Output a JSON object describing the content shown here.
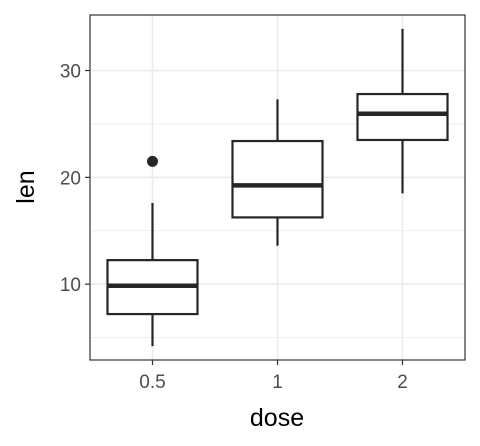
{
  "chart_data": {
    "type": "box",
    "xlabel": "dose",
    "ylabel": "len",
    "categories": [
      "0.5",
      "1",
      "2"
    ],
    "ylim": [
      2.9,
      35.2
    ],
    "yticks": [
      10,
      20,
      30
    ],
    "yticks_minor": [
      5,
      15,
      25
    ],
    "grid": true,
    "boxes": [
      {
        "category": "0.5",
        "whisker_low": 4.2,
        "q1": 7.2,
        "median": 9.85,
        "q3": 12.25,
        "whisker_high": 17.6,
        "outliers": [
          21.5
        ]
      },
      {
        "category": "1",
        "whisker_low": 13.6,
        "q1": 16.25,
        "median": 19.25,
        "q3": 23.4,
        "whisker_high": 27.3,
        "outliers": []
      },
      {
        "category": "2",
        "whisker_low": 18.5,
        "q1": 23.5,
        "median": 25.95,
        "q3": 27.8,
        "whisker_high": 33.9,
        "outliers": []
      }
    ],
    "colors": {
      "box_line": "#262626",
      "grid": "#ebebeb",
      "panel_border": "#333333"
    }
  }
}
